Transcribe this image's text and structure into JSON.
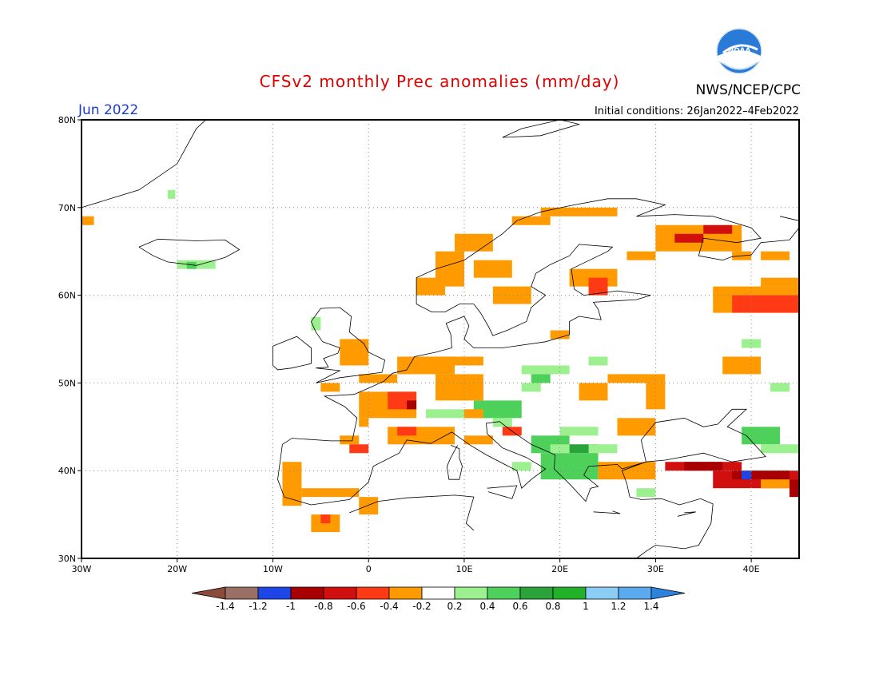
{
  "header": {
    "title": "CFSv2 monthly Prec anomalies (mm/day)",
    "org": "NWS/NCEP/CPC",
    "logo_text": "NOAA",
    "month": "Jun 2022",
    "initial_conditions": "Initial conditions: 26Jan2022–4Feb2022"
  },
  "map": {
    "lon_range": [
      -30,
      45
    ],
    "lat_range": [
      30,
      80
    ],
    "lon_ticks": [
      "30W",
      "20W",
      "10W",
      "0",
      "10E",
      "20E",
      "30E",
      "40E"
    ],
    "lat_ticks": [
      "30N",
      "40N",
      "50N",
      "60N",
      "70N",
      "80N"
    ],
    "grid": "dotted"
  },
  "colorbar": {
    "labels": [
      "-1.4",
      "-1.2",
      "-1",
      "-0.8",
      "-0.6",
      "-0.4",
      "-0.2",
      "0.2",
      "0.4",
      "0.6",
      "0.8",
      "1",
      "1.2",
      "1.4"
    ],
    "colors": {
      "lt_neg14": "#8b4a3a",
      "neg14_neg12": "#9a7065",
      "neg12_neg1": "#1e46e6",
      "neg1_neg08": "#a80000",
      "neg08_neg06": "#d20f0f",
      "neg06_neg04": "#ff3a14",
      "neg04_neg02": "#ff9a00",
      "neg02_02": "#ffffff",
      "p02_p04": "#9df08f",
      "p04_p06": "#4ed15a",
      "p06_p08": "#2aa43a",
      "p08_p1": "#22b229",
      "p1_p12": "#8ccdf5",
      "p12_p14": "#5aaaf0",
      "gt_p14": "#2d82dc"
    }
  }
}
